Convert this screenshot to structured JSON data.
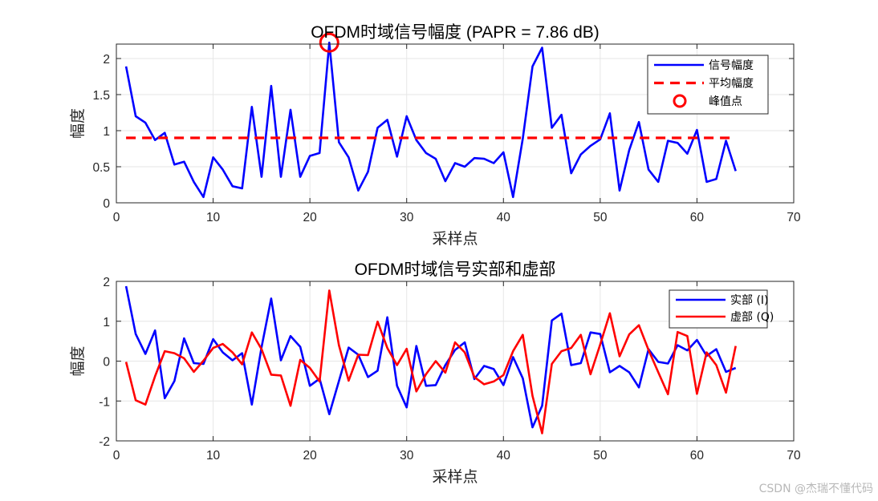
{
  "chart_data": [
    {
      "type": "line",
      "title": "OFDM时域信号幅度 (PAPR = 7.86 dB)",
      "xlabel": "采样点",
      "ylabel": "幅度",
      "xlim": [
        0,
        70
      ],
      "ylim": [
        0,
        2.2
      ],
      "xticks": [
        0,
        10,
        20,
        30,
        40,
        50,
        60,
        70
      ],
      "yticks": [
        0,
        0.5,
        1,
        1.5,
        2
      ],
      "grid": true,
      "legend_position": "top-right",
      "x": [
        1,
        2,
        3,
        4,
        5,
        6,
        7,
        8,
        9,
        10,
        11,
        12,
        13,
        14,
        15,
        16,
        17,
        18,
        19,
        20,
        21,
        22,
        23,
        24,
        25,
        26,
        27,
        28,
        29,
        30,
        31,
        32,
        33,
        34,
        35,
        36,
        37,
        38,
        39,
        40,
        41,
        42,
        43,
        44,
        45,
        46,
        47,
        48,
        49,
        50,
        51,
        52,
        53,
        54,
        55,
        56,
        57,
        58,
        59,
        60,
        61,
        62,
        63,
        64
      ],
      "series": [
        {
          "name": "信号幅度",
          "color": "#0000ff",
          "style": "solid",
          "values": [
            1.89,
            1.2,
            1.11,
            0.87,
            0.97,
            0.53,
            0.57,
            0.29,
            0.08,
            0.63,
            0.46,
            0.23,
            0.2,
            1.33,
            0.36,
            1.62,
            0.36,
            1.29,
            0.36,
            0.65,
            0.69,
            2.22,
            0.84,
            0.63,
            0.17,
            0.43,
            1.04,
            1.15,
            0.64,
            1.2,
            0.87,
            0.69,
            0.61,
            0.3,
            0.55,
            0.5,
            0.62,
            0.61,
            0.55,
            0.7,
            0.08,
            0.89,
            1.89,
            2.15,
            1.04,
            1.22,
            0.41,
            0.67,
            0.79,
            0.88,
            1.24,
            0.17,
            0.73,
            1.12,
            0.46,
            0.29,
            0.86,
            0.83,
            0.68,
            1.01,
            0.29,
            0.33,
            0.86,
            0.44
          ]
        },
        {
          "name": "平均幅度",
          "color": "#ff0000",
          "style": "dashed",
          "values": [
            0.9,
            0.9,
            0.9,
            0.9,
            0.9,
            0.9,
            0.9,
            0.9,
            0.9,
            0.9,
            0.9,
            0.9,
            0.9,
            0.9,
            0.9,
            0.9,
            0.9,
            0.9,
            0.9,
            0.9,
            0.9,
            0.9,
            0.9,
            0.9,
            0.9,
            0.9,
            0.9,
            0.9,
            0.9,
            0.9,
            0.9,
            0.9,
            0.9,
            0.9,
            0.9,
            0.9,
            0.9,
            0.9,
            0.9,
            0.9,
            0.9,
            0.9,
            0.9,
            0.9,
            0.9,
            0.9,
            0.9,
            0.9,
            0.9,
            0.9,
            0.9,
            0.9,
            0.9,
            0.9,
            0.9,
            0.9,
            0.9,
            0.9,
            0.9,
            0.9,
            0.9,
            0.9,
            0.9,
            0.9
          ]
        },
        {
          "name": "峰值点",
          "color": "#ff0000",
          "style": "marker",
          "points": [
            [
              22,
              2.22
            ]
          ]
        }
      ]
    },
    {
      "type": "line",
      "title": "OFDM时域信号实部和虚部",
      "xlabel": "采样点",
      "ylabel": "幅度",
      "xlim": [
        0,
        70
      ],
      "ylim": [
        -2,
        2
      ],
      "xticks": [
        0,
        10,
        20,
        30,
        40,
        50,
        60,
        70
      ],
      "yticks": [
        -2,
        -1,
        0,
        1,
        2
      ],
      "grid": true,
      "legend_position": "top-right",
      "x": [
        1,
        2,
        3,
        4,
        5,
        6,
        7,
        8,
        9,
        10,
        11,
        12,
        13,
        14,
        15,
        16,
        17,
        18,
        19,
        20,
        21,
        22,
        23,
        24,
        25,
        26,
        27,
        28,
        29,
        30,
        31,
        32,
        33,
        34,
        35,
        36,
        37,
        38,
        39,
        40,
        41,
        42,
        43,
        44,
        45,
        46,
        47,
        48,
        49,
        50,
        51,
        52,
        53,
        54,
        55,
        56,
        57,
        58,
        59,
        60,
        61,
        62,
        63,
        64
      ],
      "series": [
        {
          "name": "实部 (I)",
          "color": "#0000ff",
          "values": [
            1.88,
            0.68,
            0.18,
            0.77,
            -0.93,
            -0.5,
            0.57,
            -0.05,
            -0.07,
            0.55,
            0.22,
            0.02,
            0.2,
            -1.09,
            0.35,
            1.57,
            0.02,
            0.63,
            0.36,
            -0.62,
            -0.44,
            -1.33,
            -0.5,
            0.34,
            0.16,
            -0.4,
            -0.24,
            1.1,
            -0.62,
            -1.16,
            0.38,
            -0.62,
            -0.6,
            -0.1,
            0.28,
            0.47,
            -0.45,
            -0.12,
            -0.2,
            -0.6,
            0.1,
            -0.43,
            -1.66,
            -1.12,
            1.02,
            1.19,
            -0.1,
            -0.05,
            0.72,
            0.68,
            -0.28,
            -0.12,
            -0.28,
            -0.66,
            0.3,
            -0.02,
            -0.06,
            0.4,
            0.27,
            0.53,
            0.13,
            0.3,
            -0.27,
            -0.17
          ]
        },
        {
          "name": "虚部 (Q)",
          "color": "#ff0000",
          "values": [
            -0.02,
            -0.98,
            -1.09,
            -0.38,
            0.25,
            0.2,
            0.07,
            -0.27,
            0.01,
            0.33,
            0.43,
            0.22,
            -0.08,
            0.72,
            0.3,
            -0.34,
            -0.36,
            -1.12,
            0.03,
            -0.17,
            -0.51,
            1.77,
            0.4,
            -0.49,
            0.16,
            0.15,
            0.99,
            0.33,
            -0.1,
            0.31,
            -0.76,
            -0.33,
            0.0,
            -0.29,
            0.47,
            0.22,
            -0.4,
            -0.58,
            -0.51,
            -0.35,
            0.25,
            0.66,
            -0.87,
            -1.81,
            -0.07,
            0.25,
            0.33,
            0.66,
            -0.33,
            0.42,
            1.2,
            0.12,
            0.67,
            0.9,
            0.28,
            -0.28,
            -0.83,
            0.73,
            0.63,
            -0.82,
            0.22,
            -0.1,
            -0.79,
            0.38
          ]
        }
      ]
    }
  ],
  "watermark": "CSDN @杰瑞不懂代码"
}
